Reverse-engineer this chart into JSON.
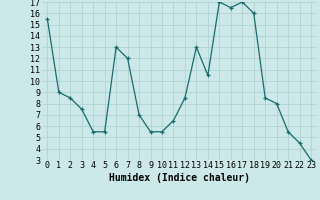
{
  "title": "",
  "xlabel": "Humidex (Indice chaleur)",
  "x": [
    0,
    1,
    2,
    3,
    4,
    5,
    6,
    7,
    8,
    9,
    10,
    11,
    12,
    13,
    14,
    15,
    16,
    17,
    18,
    19,
    20,
    21,
    22,
    23
  ],
  "y": [
    15.5,
    9,
    8.5,
    7.5,
    5.5,
    5.5,
    13,
    12,
    7,
    5.5,
    5.5,
    6.5,
    8.5,
    13,
    10.5,
    17,
    16.5,
    17,
    16,
    8.5,
    8,
    5.5,
    4.5,
    3
  ],
  "line_color": "#1a6b6b",
  "bg_color": "#cce8e8",
  "grid_color": "#aacfcf",
  "xlim": [
    -0.5,
    23.5
  ],
  "ylim": [
    3,
    17
  ],
  "yticks": [
    3,
    4,
    5,
    6,
    7,
    8,
    9,
    10,
    11,
    12,
    13,
    14,
    15,
    16,
    17
  ],
  "xticks": [
    0,
    1,
    2,
    3,
    4,
    5,
    6,
    7,
    8,
    9,
    10,
    11,
    12,
    13,
    14,
    15,
    16,
    17,
    18,
    19,
    20,
    21,
    22,
    23
  ],
  "xlabel_fontsize": 7,
  "tick_fontsize": 6,
  "marker": "+"
}
